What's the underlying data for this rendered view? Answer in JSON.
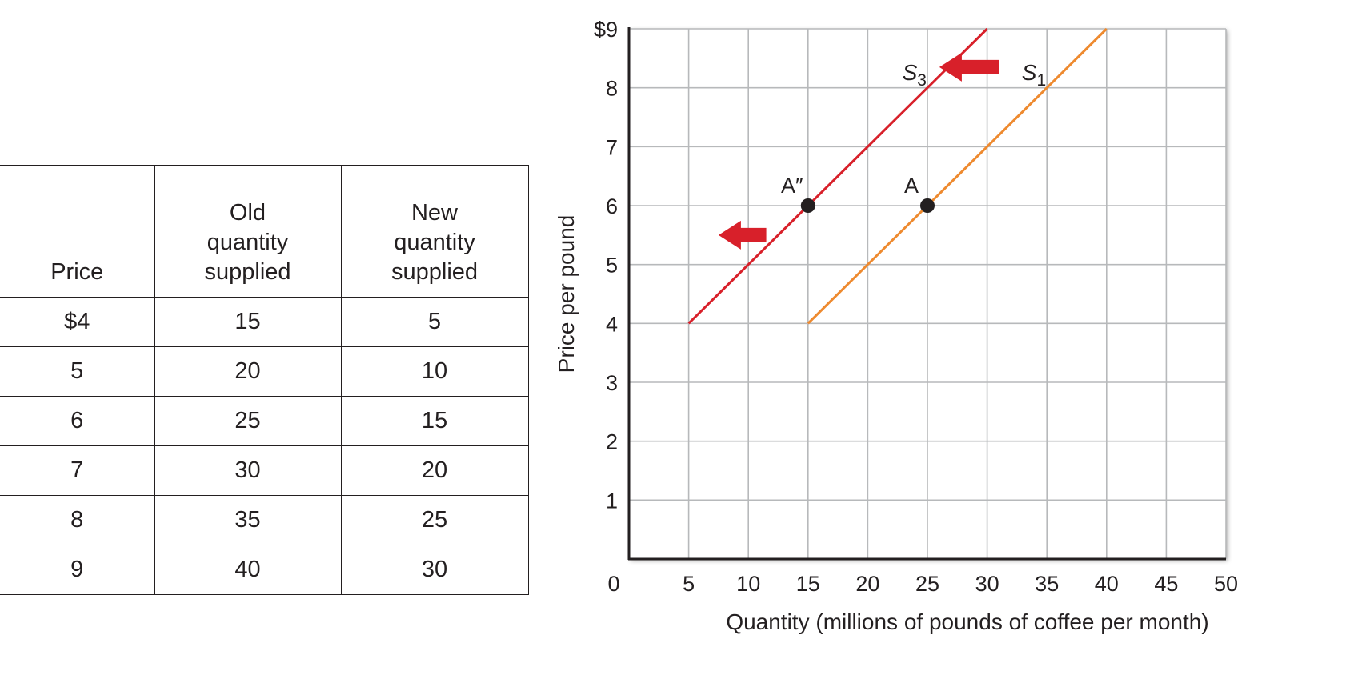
{
  "table": {
    "headers": [
      "Price",
      "Old\nquantity\nsupplied",
      "New\nquantity\nsupplied"
    ],
    "rows": [
      [
        "$4",
        "15",
        "5"
      ],
      [
        "5",
        "20",
        "10"
      ],
      [
        "6",
        "25",
        "15"
      ],
      [
        "7",
        "30",
        "20"
      ],
      [
        "8",
        "35",
        "25"
      ],
      [
        "9",
        "40",
        "30"
      ]
    ]
  },
  "chart_data": {
    "type": "line",
    "xlabel": "Quantity (millions of pounds of coffee per month)",
    "ylabel": "Price per pound",
    "xlim": [
      0,
      50
    ],
    "ylim": [
      0,
      9
    ],
    "x_ticks": [
      "0",
      "5",
      "10",
      "15",
      "20",
      "25",
      "30",
      "35",
      "40",
      "45",
      "50"
    ],
    "y_ticks": [
      "1",
      "2",
      "3",
      "4",
      "5",
      "6",
      "7",
      "8",
      "$9"
    ],
    "grid": true,
    "series": [
      {
        "name": "S",
        "subscript": "1",
        "color": "#ee8a2f",
        "points": [
          [
            15,
            4
          ],
          [
            40,
            9
          ]
        ]
      },
      {
        "name": "S",
        "subscript": "3",
        "color": "#d8202a",
        "points": [
          [
            5,
            4
          ],
          [
            30,
            9
          ]
        ]
      }
    ],
    "points": [
      {
        "label": "A",
        "x": 25,
        "y": 6
      },
      {
        "label": "A″",
        "x": 15,
        "y": 6
      }
    ],
    "annotations": [
      {
        "type": "arrow",
        "direction": "left",
        "color": "#d8202a",
        "from": [
          31,
          8.35
        ],
        "to": [
          26,
          8.35
        ]
      },
      {
        "type": "arrow",
        "direction": "left",
        "color": "#d8202a",
        "from": [
          11.5,
          5.5
        ],
        "to": [
          7.5,
          5.5
        ]
      }
    ]
  }
}
